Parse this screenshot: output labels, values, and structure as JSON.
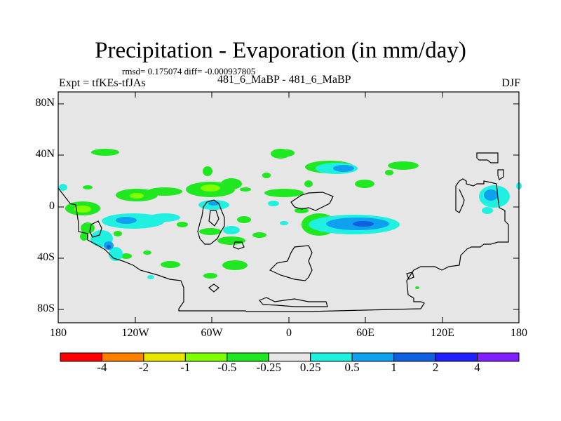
{
  "figure": {
    "title": "Precipitation - Evaporation (in mm/day)",
    "stats": "rmsd= 0.175074 diff= -0.000937805",
    "experiment": "Expt = tfKEs-tfJAs",
    "cases": "481_6_MaBP - 481_6_MaBP",
    "season": "DJF"
  },
  "axes": {
    "lat_ticks": [
      "80N",
      "40N",
      "0",
      "40S",
      "80S"
    ],
    "lon_ticks": [
      "180",
      "120W",
      "60W",
      "0",
      "60E",
      "120E",
      "180"
    ]
  },
  "colorbar": {
    "labels": [
      "-4",
      "-2",
      "-1",
      "-0.5",
      "-0.25",
      "0.25",
      "0.5",
      "1",
      "2",
      "4"
    ],
    "colors": [
      "#ff0000",
      "#ff8000",
      "#e6e600",
      "#80ff00",
      "#20e820",
      "#e6e6e6",
      "#20f0e0",
      "#10a0f0",
      "#1060e0",
      "#2020ff",
      "#8020ff"
    ]
  },
  "map_data": {
    "background_color": "#e6e6e6",
    "contour_levels": [
      -4,
      -2,
      -1,
      -0.5,
      -0.25,
      0.25,
      0.5,
      1,
      2,
      4
    ],
    "lon_range": [
      -180,
      180
    ],
    "lat_range": [
      -90,
      90
    ]
  }
}
